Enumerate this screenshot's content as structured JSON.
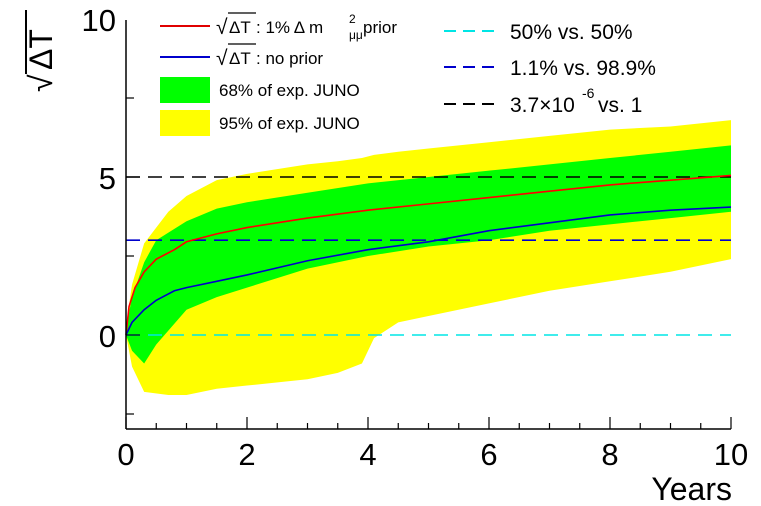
{
  "chart_data": {
    "type": "line",
    "xlabel": "Years",
    "ylabel": "√ΔT",
    "xlim": [
      0,
      10
    ],
    "ylim": [
      -3,
      10
    ],
    "x_ticks": [
      "0",
      "2",
      "4",
      "6",
      "8",
      "10"
    ],
    "y_ticks": [
      "0",
      "5",
      "10"
    ],
    "bands": [
      {
        "name": "95% of exp. JUNO",
        "color": "#ffff00",
        "x": [
          0,
          0.1,
          0.3,
          0.7,
          1,
          1.5,
          2,
          3,
          3.5,
          3.9,
          4.1,
          4.5,
          5,
          6,
          7,
          8,
          9,
          10
        ],
        "upper": [
          0.3,
          1.6,
          2.9,
          3.9,
          4.4,
          4.9,
          5.1,
          5.4,
          5.5,
          5.6,
          5.7,
          5.8,
          5.9,
          6.1,
          6.3,
          6.5,
          6.6,
          6.8
        ],
        "lower": [
          0,
          -1.0,
          -1.8,
          -1.9,
          -1.9,
          -1.7,
          -1.6,
          -1.4,
          -1.2,
          -0.9,
          -0.1,
          0.4,
          0.6,
          1.0,
          1.4,
          1.7,
          2.0,
          2.4
        ]
      },
      {
        "name": "68% of exp. JUNO",
        "color": "#00ff00",
        "x": [
          0,
          0.1,
          0.3,
          0.5,
          1,
          1.5,
          2,
          3,
          4,
          5,
          6,
          7,
          8,
          9,
          10
        ],
        "upper": [
          0.2,
          1.2,
          2.3,
          3.0,
          3.6,
          4.0,
          4.2,
          4.5,
          4.8,
          5.0,
          5.2,
          5.4,
          5.6,
          5.8,
          6.0
        ],
        "lower": [
          0,
          -0.5,
          -0.9,
          -0.3,
          0.8,
          1.2,
          1.5,
          2.1,
          2.5,
          2.8,
          3.0,
          3.3,
          3.5,
          3.7,
          3.9
        ]
      }
    ],
    "series": [
      {
        "name": "√ΔT: 1% Δ m²μμ prior",
        "color": "#ff0000",
        "x": [
          0,
          0.05,
          0.15,
          0.3,
          0.5,
          0.8,
          1,
          1.5,
          2,
          3,
          4,
          5,
          6,
          7,
          8,
          9,
          10
        ],
        "values": [
          0,
          0.9,
          1.5,
          2.0,
          2.4,
          2.7,
          2.95,
          3.2,
          3.4,
          3.7,
          3.95,
          4.15,
          4.35,
          4.55,
          4.75,
          4.9,
          5.05
        ]
      },
      {
        "name": "√ΔT: no prior",
        "color": "#0000cc",
        "x": [
          0,
          0.1,
          0.3,
          0.5,
          0.8,
          1,
          1.5,
          2,
          3,
          4,
          5,
          6,
          7,
          8,
          9,
          10
        ],
        "values": [
          0,
          0.4,
          0.8,
          1.1,
          1.4,
          1.5,
          1.7,
          1.9,
          2.35,
          2.7,
          2.95,
          3.3,
          3.55,
          3.8,
          3.95,
          4.05
        ]
      }
    ],
    "reference_lines": [
      {
        "name": "50% vs. 50%",
        "y": 0,
        "color": "#00e5e5"
      },
      {
        "name": "1.1% vs. 98.9%",
        "y": 3,
        "color": "#0000cc"
      },
      {
        "name": "3.7×10⁻⁶ vs. 1",
        "y": 5,
        "color": "#000000"
      }
    ],
    "legend": {
      "placement": "top",
      "red_prefix": "√",
      "red_radicand": "ΔT",
      "red_suffix": ": 1%  Δ m",
      "red_sup": "2",
      "red_sub": "μμ",
      "red_tail": " prior",
      "blue_prefix": "√",
      "blue_radicand": "ΔT",
      "blue_suffix": ": no prior",
      "band68": "68% of exp. JUNO",
      "band95": "95% of exp. JUNO",
      "ref1": "50% vs. 50%",
      "ref2": "1.1% vs. 98.9%",
      "ref3_base": "3.7×10",
      "ref3_exp": "-6",
      "ref3_tail": " vs. 1"
    },
    "y_axis_title": {
      "root": "√",
      "radicand": "ΔT"
    }
  }
}
